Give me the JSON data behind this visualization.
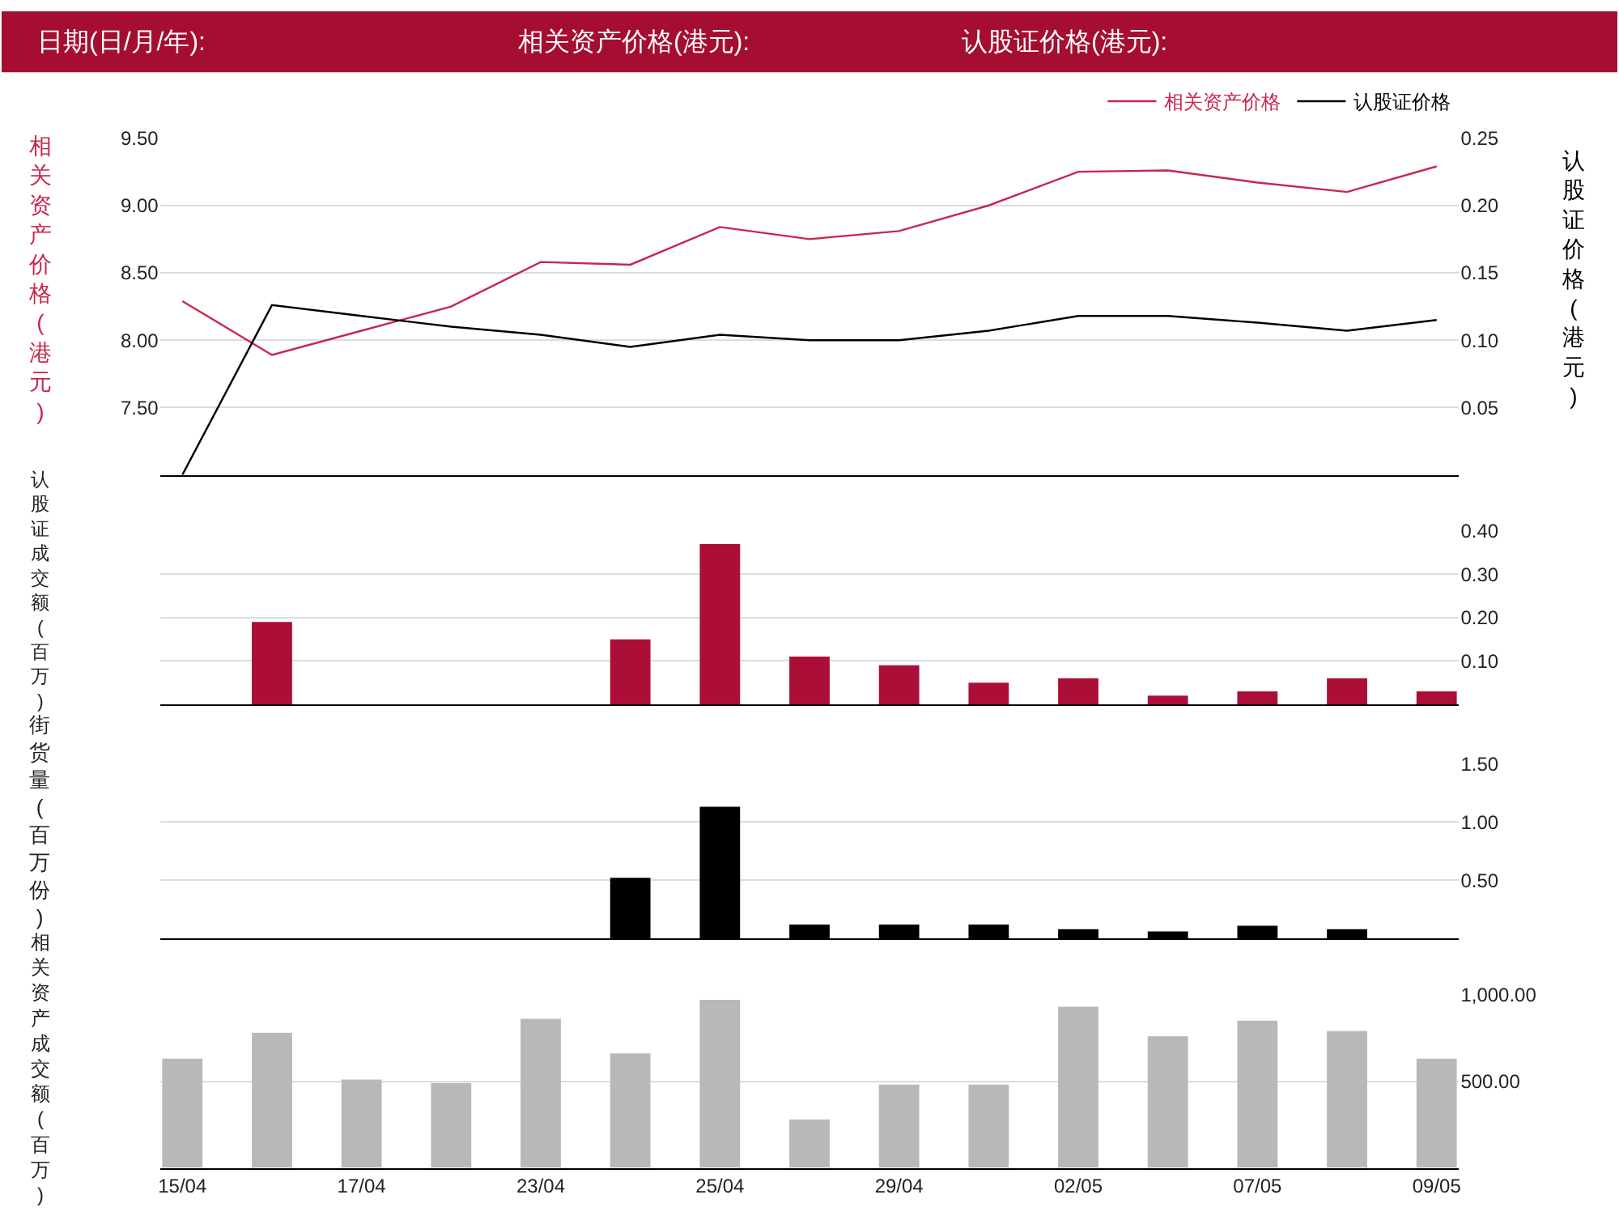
{
  "chart_data": [
    {
      "type": "line",
      "annotations": [
        "日期(日/月/年):",
        "相关资产价格(港元):",
        "认股证价格(港元):"
      ],
      "ylabel": "相关资产价格(港元)",
      "y2label": "认股证价格(港元)",
      "categories": [
        null,
        null,
        null,
        null,
        null,
        null,
        null,
        null,
        null,
        null,
        null,
        null,
        null,
        null,
        null
      ],
      "series": [
        {
          "name": "相关资产价格",
          "color": "#c8264c",
          "values": [
            8.29,
            7.89,
            8.07,
            8.25,
            8.58,
            8.56,
            8.84,
            8.75,
            8.81,
            9.0,
            9.25,
            9.26,
            9.17,
            9.1,
            9.29
          ]
        },
        {
          "name": "认股证价格",
          "color": "#000000",
          "axis": "y2",
          "values": [
            0,
            0.126,
            0.118,
            0.11,
            0.104,
            0.095,
            0.104,
            0.1,
            0.1,
            0.107,
            0.118,
            0.118,
            0.113,
            0.107,
            0.115
          ]
        }
      ],
      "ylim": [
        7,
        9.5
      ],
      "yticks": [
        {
          "value": 7.5,
          "label": "7.50"
        },
        {
          "value": 8,
          "label": "8.00"
        },
        {
          "value": 8.5,
          "label": "8.50"
        },
        {
          "value": 9,
          "label": "9.00"
        },
        {
          "value": 9.5,
          "label": "9.50"
        }
      ],
      "y2lim": [
        0,
        0.25
      ],
      "y2ticks": [
        0.05,
        {
          "value": 0.1,
          "label": "0.10"
        },
        0.15,
        {
          "value": 0.2,
          "label": "0.20"
        },
        0.25
      ],
      "grid": "y",
      "legend": "top right",
      "tick_labels": "y"
    },
    {
      "type": "bar",
      "ylabel": "认股证成交额(百万)",
      "categories": [
        null,
        null,
        null,
        null,
        null,
        null,
        null,
        null,
        null,
        null,
        null,
        null,
        null,
        null,
        null
      ],
      "values": [
        null,
        0.19,
        null,
        null,
        null,
        0.15,
        0.37,
        0.11,
        0.09,
        0.05,
        0.06,
        0.02,
        0.03,
        0.06,
        0.03
      ],
      "color": "#ab0e36",
      "ylim": [
        0,
        0.4
      ],
      "yticks": [
        {
          "value": 0.1,
          "label": "0.10"
        },
        {
          "value": 0.2,
          "label": "0.20"
        },
        {
          "value": 0.3,
          "label": "0.30"
        },
        {
          "value": 0.4,
          "label": "0.40"
        }
      ],
      "grid": "y",
      "tick_labels": "y"
    },
    {
      "type": "bar",
      "ylabel": "街货量(百万份)",
      "categories": [
        null,
        null,
        null,
        null,
        null,
        null,
        null,
        null,
        null,
        null,
        null,
        null,
        null,
        null,
        null
      ],
      "values": [
        null,
        null,
        null,
        null,
        null,
        0.52,
        1.13,
        0.12,
        0.12,
        0.12,
        0.08,
        0.06,
        0.11,
        0.08,
        null
      ],
      "color": "#000000",
      "ylim": [
        0,
        1.5
      ],
      "yticks": [
        {
          "value": 0.5,
          "label": "0.50"
        },
        {
          "value": 1,
          "label": "1.00"
        },
        {
          "value": 1.5,
          "label": "1.50"
        }
      ],
      "grid": "y",
      "tick_labels": "y"
    },
    {
      "type": "bar",
      "ylabel": "相关资产成交额(百万)",
      "categories": [
        "15/04",
        null,
        "17/04",
        null,
        "23/04",
        null,
        "25/04",
        null,
        "29/04",
        null,
        "02/05",
        null,
        "07/05",
        null,
        "09/05"
      ],
      "values": [
        630,
        780,
        510,
        490,
        860,
        660,
        970,
        280,
        480,
        480,
        930,
        760,
        850,
        790,
        630
      ],
      "color": "#b8b8b8",
      "ylim": [
        0,
        1000
      ],
      "yticks": [
        {
          "value": 500,
          "label": "500.00"
        },
        {
          "value": 1000,
          "label": "1,000.00"
        }
      ],
      "grid": "y"
    }
  ]
}
